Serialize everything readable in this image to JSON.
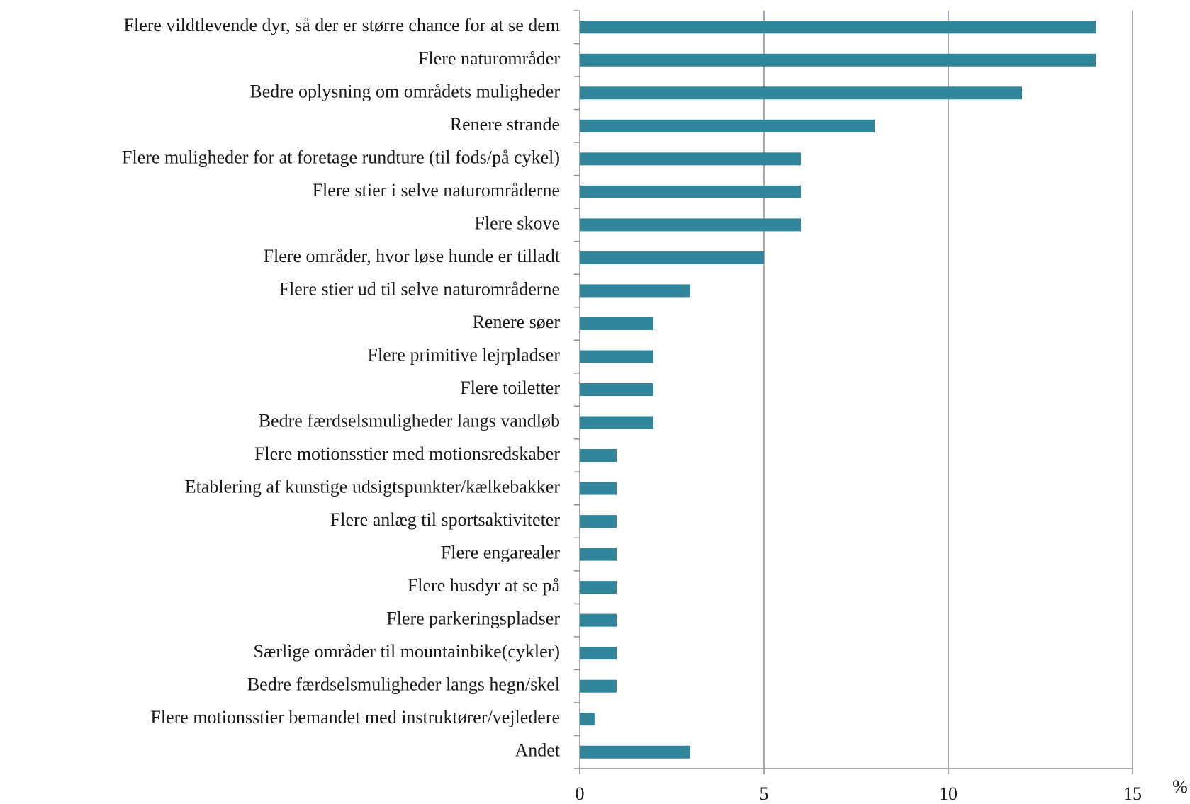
{
  "chart_data": {
    "type": "bar",
    "horizontal": true,
    "categories": [
      "Flere vildtlevende dyr, så der er større chance for at se dem",
      "Flere naturområder",
      "Bedre oplysning om områdets muligheder",
      "Renere strande",
      "Flere muligheder for at foretage rundture (til fods/på cykel)",
      "Flere stier i selve naturområderne",
      "Flere skove",
      "Flere områder, hvor løse hunde er tilladt",
      "Flere stier ud til selve naturområderne",
      "Renere søer",
      "Flere primitive lejrpladser",
      "Flere toiletter",
      "Bedre færdselsmuligheder langs vandløb",
      "Flere motionsstier med motionsredskaber",
      "Etablering af kunstige udsigtspunkter/kælkebakker",
      "Flere anlæg til sportsaktiviteter",
      "Flere engarealer",
      "Flere husdyr at se på",
      "Flere parkeringspladser",
      "Særlige områder til mountainbike(cykler)",
      "Bedre færdselsmuligheder langs hegn/skel",
      "Flere motionsstier bemandet med instruktører/vejledere",
      "Andet"
    ],
    "values": [
      14,
      14,
      12,
      8,
      6,
      6,
      6,
      5,
      3,
      2,
      2,
      2,
      2,
      1,
      1,
      1,
      1,
      1,
      1,
      1,
      1,
      0.4,
      3
    ],
    "color": "#31869b",
    "xlabel": "%",
    "xlim": [
      0,
      15
    ],
    "xticks": [
      0,
      5,
      10,
      15
    ],
    "grid": true
  }
}
